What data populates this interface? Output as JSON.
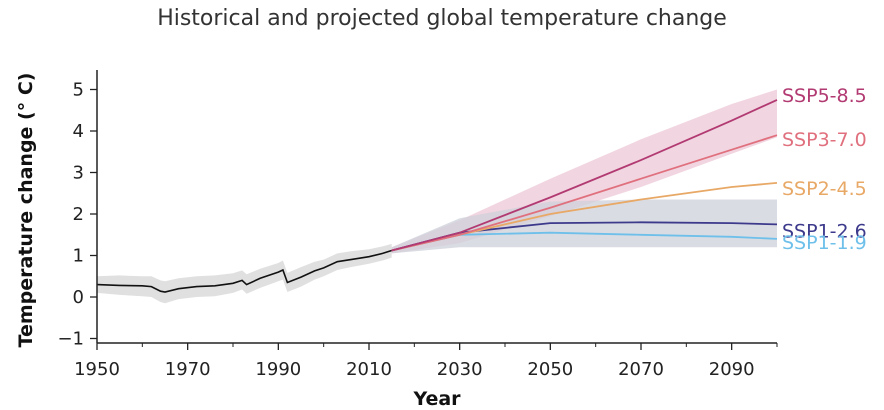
{
  "chart_data": {
    "type": "line",
    "title": "Historical and projected global temperature change",
    "xlabel": "Year",
    "ylabel": "Temperature change (° C)",
    "xlim": [
      1950,
      2100
    ],
    "ylim": [
      -1,
      5.5
    ],
    "x_ticks": [
      1950,
      1970,
      1990,
      2010,
      2030,
      2050,
      2070,
      2090
    ],
    "x_tick_labels": [
      "1950",
      "1970",
      "1990",
      "2010",
      "2030",
      "2050",
      "2070",
      "2090"
    ],
    "y_ticks": [
      -1,
      0,
      1,
      2,
      3,
      4,
      5
    ],
    "y_tick_labels": [
      "−1",
      "0",
      "1",
      "2",
      "3",
      "4",
      "5"
    ],
    "grid": false,
    "legend": "labels at right end of lines",
    "historical": {
      "color": "#111111",
      "band_color": "#e0e0e0",
      "x": [
        1950,
        1955,
        1960,
        1962,
        1964,
        1965,
        1968,
        1972,
        1976,
        1980,
        1982,
        1983,
        1986,
        1990,
        1991,
        1992,
        1995,
        1998,
        2000,
        2003,
        2006,
        2010,
        2013,
        2015
      ],
      "y": [
        0.3,
        0.28,
        0.27,
        0.25,
        0.14,
        0.12,
        0.2,
        0.25,
        0.27,
        0.33,
        0.4,
        0.3,
        0.45,
        0.6,
        0.65,
        0.35,
        0.48,
        0.63,
        0.7,
        0.85,
        0.9,
        0.97,
        1.05,
        1.12
      ],
      "lower": [
        0.1,
        0.05,
        0.02,
        0.0,
        -0.12,
        -0.15,
        -0.05,
        0.0,
        0.02,
        0.1,
        0.18,
        0.08,
        0.22,
        0.38,
        0.42,
        0.12,
        0.25,
        0.42,
        0.5,
        0.65,
        0.72,
        0.8,
        0.88,
        0.95
      ],
      "upper": [
        0.5,
        0.52,
        0.5,
        0.5,
        0.4,
        0.38,
        0.45,
        0.5,
        0.52,
        0.57,
        0.64,
        0.55,
        0.68,
        0.82,
        0.88,
        0.58,
        0.72,
        0.85,
        0.9,
        1.05,
        1.1,
        1.15,
        1.22,
        1.28
      ]
    },
    "series": [
      {
        "name": "SSP5-8.5",
        "color": "#b23a72",
        "x": [
          2015,
          2030,
          2050,
          2070,
          2090,
          2100
        ],
        "y": [
          1.12,
          1.55,
          2.4,
          3.3,
          4.25,
          4.75
        ]
      },
      {
        "name": "SSP3-7.0",
        "color": "#e0707e",
        "x": [
          2015,
          2030,
          2050,
          2070,
          2090,
          2100
        ],
        "y": [
          1.12,
          1.5,
          2.15,
          2.85,
          3.55,
          3.9
        ]
      },
      {
        "name": "SSP2-4.5",
        "color": "#e8a866",
        "x": [
          2015,
          2030,
          2050,
          2070,
          2090,
          2100
        ],
        "y": [
          1.12,
          1.5,
          2.0,
          2.35,
          2.65,
          2.75
        ]
      },
      {
        "name": "SSP1-2.6",
        "color": "#3d3a8c",
        "x": [
          2015,
          2030,
          2050,
          2070,
          2090,
          2100
        ],
        "y": [
          1.12,
          1.55,
          1.78,
          1.8,
          1.78,
          1.75
        ]
      },
      {
        "name": "SSP1-1.9",
        "color": "#6ec0ea",
        "x": [
          2015,
          2030,
          2050,
          2070,
          2090,
          2100
        ],
        "y": [
          1.12,
          1.5,
          1.55,
          1.5,
          1.45,
          1.4
        ]
      }
    ],
    "bands": [
      {
        "name": "SSP5-8.5 range",
        "color": "#ecc7d5",
        "x": [
          2015,
          2030,
          2050,
          2070,
          2090,
          2100
        ],
        "lower": [
          1.05,
          1.3,
          1.95,
          2.65,
          3.45,
          3.85
        ],
        "upper": [
          1.2,
          1.85,
          2.85,
          3.8,
          4.65,
          5.0
        ]
      },
      {
        "name": "SSP1-2.6 range",
        "color": "#cdd0d9",
        "x": [
          2015,
          2030,
          2050,
          2070,
          2090,
          2100
        ],
        "lower": [
          1.05,
          1.2,
          1.2,
          1.2,
          1.2,
          1.2
        ],
        "upper": [
          1.2,
          1.9,
          2.3,
          2.35,
          2.35,
          2.35
        ]
      }
    ]
  }
}
